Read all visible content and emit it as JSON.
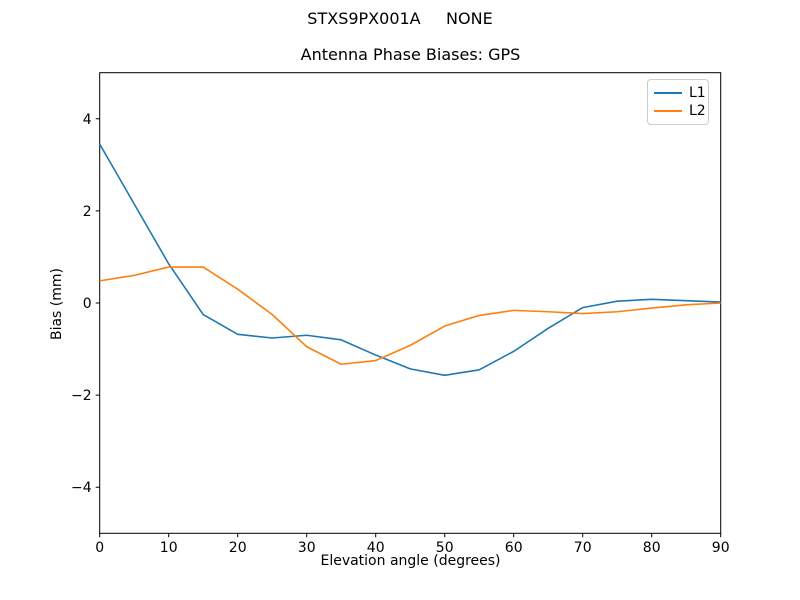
{
  "figure": {
    "suptitle": "STXS9PX001A     NONE"
  },
  "chart_data": {
    "type": "line",
    "suptitle": "STXS9PX001A     NONE",
    "title": "Antenna Phase Biases: GPS",
    "xlabel": "Elevation angle (degrees)",
    "ylabel": "Bias (mm)",
    "xlim": [
      0,
      90
    ],
    "ylim": [
      -5,
      5
    ],
    "xticks": [
      0,
      10,
      20,
      30,
      40,
      50,
      60,
      70,
      80,
      90
    ],
    "xticklabels": [
      "0",
      "10",
      "20",
      "30",
      "40",
      "50",
      "60",
      "70",
      "80",
      "90"
    ],
    "yticks": [
      4,
      2,
      0,
      -2,
      -4
    ],
    "yticklabels": [
      "4",
      "2",
      "0",
      "−2",
      "−4"
    ],
    "grid": false,
    "legend_position": "upper right",
    "x": [
      0,
      5,
      10,
      15,
      20,
      25,
      30,
      35,
      40,
      45,
      50,
      55,
      60,
      65,
      70,
      75,
      80,
      85,
      90
    ],
    "series": [
      {
        "name": "L1",
        "color": "#1f77b4",
        "values": [
          3.45,
          2.15,
          0.85,
          -0.25,
          -0.68,
          -0.76,
          -0.7,
          -0.8,
          -1.13,
          -1.43,
          -1.57,
          -1.45,
          -1.05,
          -0.55,
          -0.1,
          0.04,
          0.08,
          0.05,
          0.02
        ]
      },
      {
        "name": "L2",
        "color": "#ff7f0e",
        "values": [
          0.48,
          0.6,
          0.78,
          0.78,
          0.3,
          -0.25,
          -0.95,
          -1.33,
          -1.25,
          -0.92,
          -0.5,
          -0.27,
          -0.16,
          -0.19,
          -0.23,
          -0.19,
          -0.11,
          -0.04,
          0.0
        ]
      }
    ]
  }
}
